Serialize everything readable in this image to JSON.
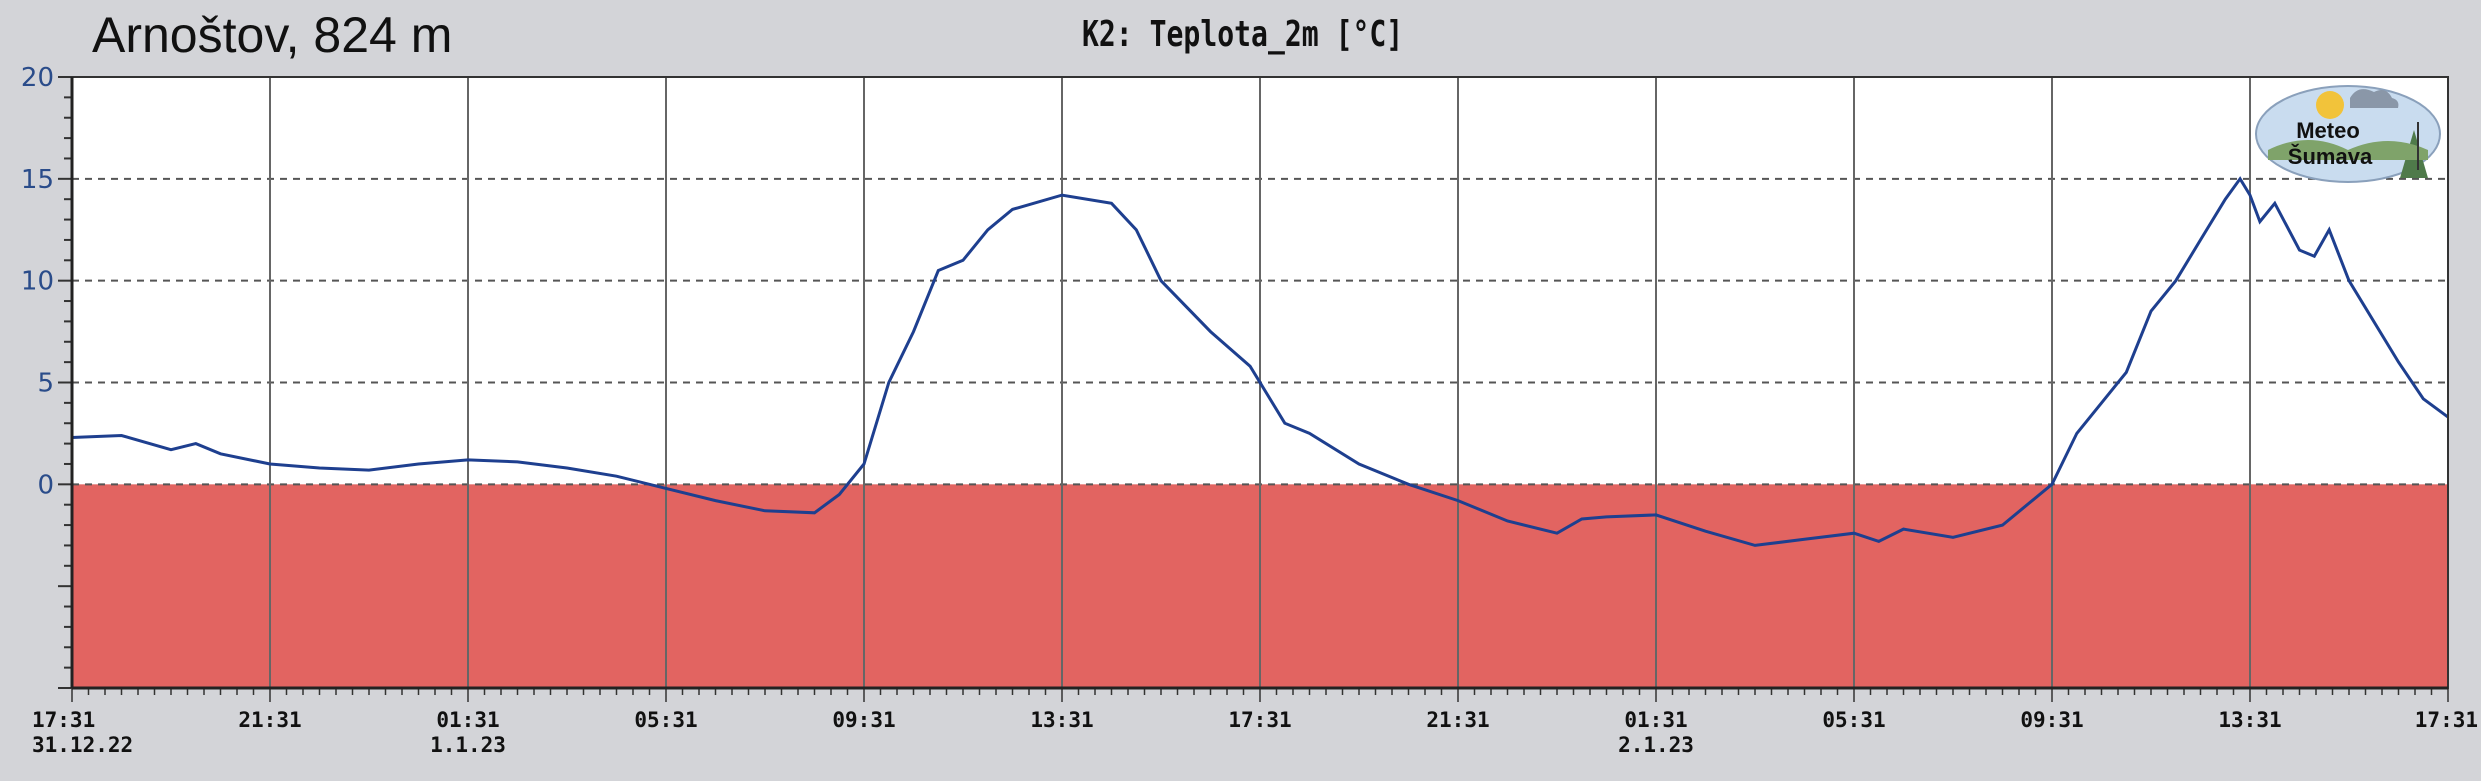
{
  "station": {
    "title": "Arnoštov, 824 m"
  },
  "logo": {
    "line1": "Meteo",
    "line2": "Šumava"
  },
  "colors": {
    "background": "#d3d4d8",
    "plot_bg": "#ffffff",
    "below_zero_fill": "#e26461",
    "series": "#1e3f8f",
    "axis_tick_labels": "#2a4c8a"
  },
  "chart_data": {
    "type": "line",
    "title": "K2: Teplota_2m [°C]",
    "ylim": [
      -10,
      20
    ],
    "yticks": [
      0,
      5,
      10,
      15,
      20
    ],
    "grid": {
      "horizontal": "dashed",
      "vertical": "solid"
    },
    "below_zero_shaded": true,
    "x_unit": "hours since 17:31 31.12.22",
    "xlim": [
      0,
      48
    ],
    "xticks": [
      {
        "x": 0,
        "time": "17:31",
        "date": "31.12.22"
      },
      {
        "x": 4,
        "time": "21:31",
        "date": ""
      },
      {
        "x": 8,
        "time": "01:31",
        "date": "1.1.23"
      },
      {
        "x": 12,
        "time": "05:31",
        "date": ""
      },
      {
        "x": 16,
        "time": "09:31",
        "date": ""
      },
      {
        "x": 20,
        "time": "13:31",
        "date": ""
      },
      {
        "x": 24,
        "time": "17:31",
        "date": ""
      },
      {
        "x": 28,
        "time": "21:31",
        "date": ""
      },
      {
        "x": 32,
        "time": "01:31",
        "date": "2.1.23"
      },
      {
        "x": 36,
        "time": "05:31",
        "date": ""
      },
      {
        "x": 40,
        "time": "09:31",
        "date": ""
      },
      {
        "x": 44,
        "time": "13:31",
        "date": ""
      },
      {
        "x": 48,
        "time": "17:31",
        "date": ""
      }
    ],
    "series": [
      {
        "values": [
          [
            0,
            2.3
          ],
          [
            1,
            2.4
          ],
          [
            2,
            1.7
          ],
          [
            2.5,
            2.0
          ],
          [
            3,
            1.5
          ],
          [
            4,
            1.0
          ],
          [
            5,
            0.8
          ],
          [
            6,
            0.7
          ],
          [
            7,
            1.0
          ],
          [
            8,
            1.2
          ],
          [
            9,
            1.1
          ],
          [
            10,
            0.8
          ],
          [
            11,
            0.4
          ],
          [
            12,
            -0.2
          ],
          [
            13,
            -0.8
          ],
          [
            14,
            -1.3
          ],
          [
            15,
            -1.4
          ],
          [
            15.5,
            -0.5
          ],
          [
            16,
            1.0
          ],
          [
            16.5,
            5.0
          ],
          [
            17,
            7.5
          ],
          [
            17.5,
            10.5
          ],
          [
            18,
            11.0
          ],
          [
            18.5,
            12.5
          ],
          [
            19,
            13.5
          ],
          [
            20,
            14.2
          ],
          [
            21,
            13.8
          ],
          [
            21.5,
            12.5
          ],
          [
            22,
            10.0
          ],
          [
            23,
            7.5
          ],
          [
            23.8,
            5.8
          ],
          [
            24.5,
            3.0
          ],
          [
            25,
            2.5
          ],
          [
            26,
            1.0
          ],
          [
            27,
            0.0
          ],
          [
            28,
            -0.8
          ],
          [
            29,
            -1.8
          ],
          [
            30,
            -2.4
          ],
          [
            30.5,
            -1.7
          ],
          [
            31,
            -1.6
          ],
          [
            32,
            -1.5
          ],
          [
            33,
            -2.3
          ],
          [
            34,
            -3.0
          ],
          [
            35,
            -2.7
          ],
          [
            36,
            -2.4
          ],
          [
            36.5,
            -2.8
          ],
          [
            37,
            -2.2
          ],
          [
            38,
            -2.6
          ],
          [
            39,
            -2.0
          ],
          [
            40,
            0.0
          ],
          [
            40.5,
            2.5
          ],
          [
            41,
            4.0
          ],
          [
            41.5,
            5.5
          ],
          [
            42,
            8.5
          ],
          [
            42.5,
            10.0
          ],
          [
            43,
            12.0
          ],
          [
            43.5,
            14.0
          ],
          [
            43.8,
            15.0
          ],
          [
            44,
            14.2
          ],
          [
            44.2,
            12.9
          ],
          [
            44.5,
            13.8
          ],
          [
            45,
            11.5
          ],
          [
            45.3,
            11.2
          ],
          [
            45.6,
            12.5
          ],
          [
            46,
            10.0
          ],
          [
            47,
            6.0
          ],
          [
            47.5,
            4.2
          ],
          [
            48,
            3.3
          ]
        ]
      }
    ]
  }
}
